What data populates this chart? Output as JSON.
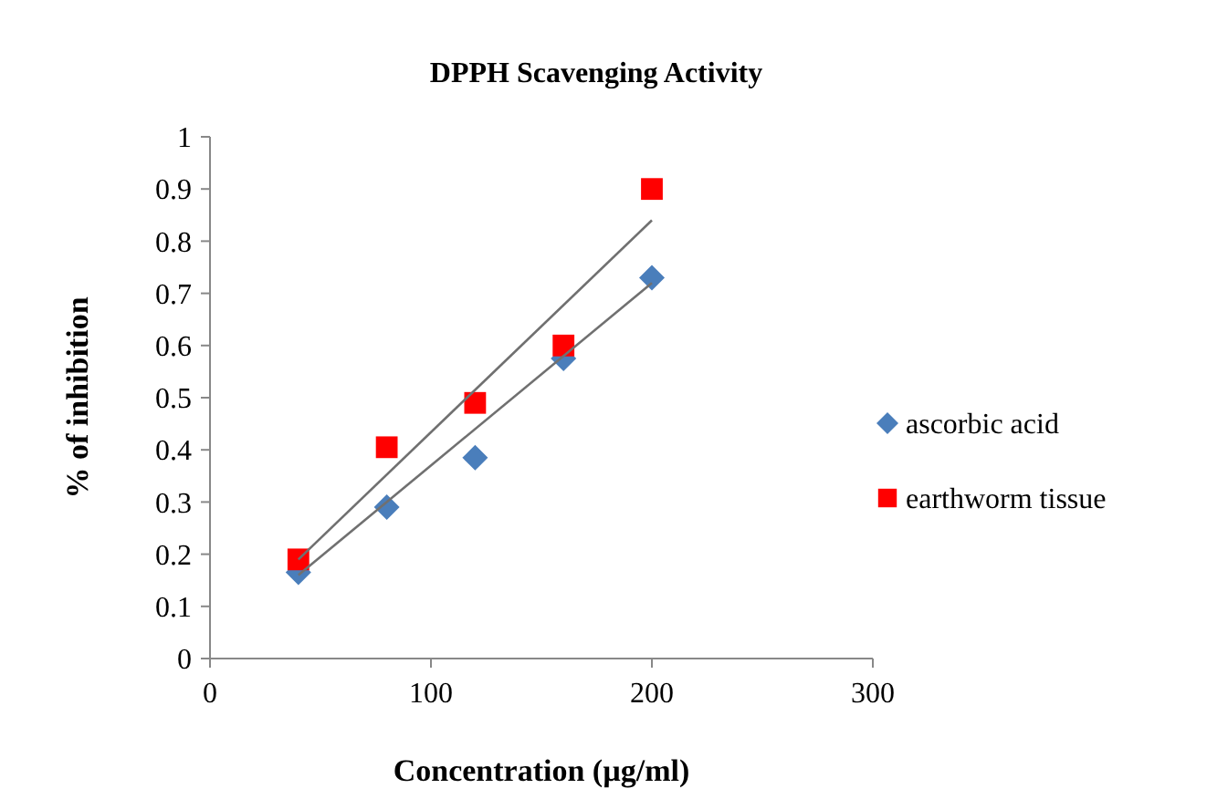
{
  "chart_data": {
    "type": "scatter",
    "title": "DPPH Scavenging Activity",
    "xlabel": "Concentration (µg/ml)",
    "ylabel": "% of inhibition",
    "xlim": [
      0,
      300
    ],
    "xticks": [
      0,
      100,
      200,
      300
    ],
    "ylim": [
      0,
      1
    ],
    "yticks": [
      0,
      0.1,
      0.2,
      0.3,
      0.4,
      0.5,
      0.6,
      0.7,
      0.8,
      0.9,
      1
    ],
    "legend": "right",
    "grid": false,
    "series": [
      {
        "name": "ascorbic acid",
        "color": "#4a7ebb",
        "marker": "diamond",
        "x": [
          40,
          80,
          120,
          160,
          200
        ],
        "values": [
          0.165,
          0.29,
          0.385,
          0.575,
          0.73
        ]
      },
      {
        "name": "earthworm tissue",
        "color": "#ff0000",
        "marker": "square",
        "x": [
          40,
          80,
          120,
          160,
          200
        ],
        "values": [
          0.19,
          0.405,
          0.49,
          0.6,
          0.9
        ]
      },
      {
        "type": "line",
        "color": "#707070",
        "x": [
          40,
          200
        ],
        "values": [
          0.16,
          0.72
        ]
      },
      {
        "type": "line",
        "color": "#707070",
        "x": [
          40,
          200
        ],
        "values": [
          0.19,
          0.84
        ]
      }
    ]
  }
}
